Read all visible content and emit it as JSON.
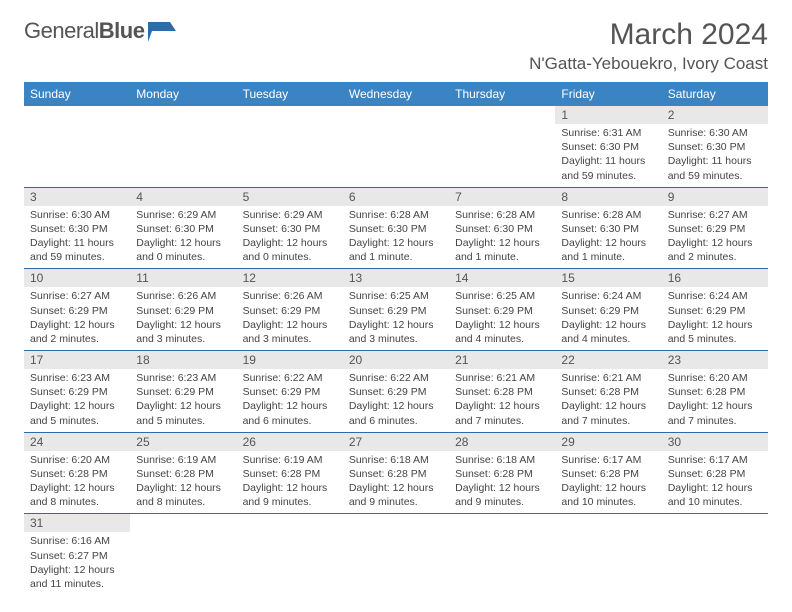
{
  "header": {
    "logo_general": "General",
    "logo_blue": "Blue",
    "title": "March 2024",
    "location": "N'Gatta-Yebouekro, Ivory Coast"
  },
  "colors": {
    "header_bg": "#3b84c4",
    "header_text": "#ffffff",
    "daynum_bg": "#e8e8e8",
    "row_border": "#2c6ca8",
    "logo_shape": "#2c6ca8",
    "text": "#444444"
  },
  "day_headers": [
    "Sunday",
    "Monday",
    "Tuesday",
    "Wednesday",
    "Thursday",
    "Friday",
    "Saturday"
  ],
  "weeks": [
    [
      null,
      null,
      null,
      null,
      null,
      {
        "n": "1",
        "sr": "Sunrise: 6:31 AM",
        "ss": "Sunset: 6:30 PM",
        "dl": "Daylight: 11 hours and 59 minutes."
      },
      {
        "n": "2",
        "sr": "Sunrise: 6:30 AM",
        "ss": "Sunset: 6:30 PM",
        "dl": "Daylight: 11 hours and 59 minutes."
      }
    ],
    [
      {
        "n": "3",
        "sr": "Sunrise: 6:30 AM",
        "ss": "Sunset: 6:30 PM",
        "dl": "Daylight: 11 hours and 59 minutes."
      },
      {
        "n": "4",
        "sr": "Sunrise: 6:29 AM",
        "ss": "Sunset: 6:30 PM",
        "dl": "Daylight: 12 hours and 0 minutes."
      },
      {
        "n": "5",
        "sr": "Sunrise: 6:29 AM",
        "ss": "Sunset: 6:30 PM",
        "dl": "Daylight: 12 hours and 0 minutes."
      },
      {
        "n": "6",
        "sr": "Sunrise: 6:28 AM",
        "ss": "Sunset: 6:30 PM",
        "dl": "Daylight: 12 hours and 1 minute."
      },
      {
        "n": "7",
        "sr": "Sunrise: 6:28 AM",
        "ss": "Sunset: 6:30 PM",
        "dl": "Daylight: 12 hours and 1 minute."
      },
      {
        "n": "8",
        "sr": "Sunrise: 6:28 AM",
        "ss": "Sunset: 6:30 PM",
        "dl": "Daylight: 12 hours and 1 minute."
      },
      {
        "n": "9",
        "sr": "Sunrise: 6:27 AM",
        "ss": "Sunset: 6:29 PM",
        "dl": "Daylight: 12 hours and 2 minutes."
      }
    ],
    [
      {
        "n": "10",
        "sr": "Sunrise: 6:27 AM",
        "ss": "Sunset: 6:29 PM",
        "dl": "Daylight: 12 hours and 2 minutes."
      },
      {
        "n": "11",
        "sr": "Sunrise: 6:26 AM",
        "ss": "Sunset: 6:29 PM",
        "dl": "Daylight: 12 hours and 3 minutes."
      },
      {
        "n": "12",
        "sr": "Sunrise: 6:26 AM",
        "ss": "Sunset: 6:29 PM",
        "dl": "Daylight: 12 hours and 3 minutes."
      },
      {
        "n": "13",
        "sr": "Sunrise: 6:25 AM",
        "ss": "Sunset: 6:29 PM",
        "dl": "Daylight: 12 hours and 3 minutes."
      },
      {
        "n": "14",
        "sr": "Sunrise: 6:25 AM",
        "ss": "Sunset: 6:29 PM",
        "dl": "Daylight: 12 hours and 4 minutes."
      },
      {
        "n": "15",
        "sr": "Sunrise: 6:24 AM",
        "ss": "Sunset: 6:29 PM",
        "dl": "Daylight: 12 hours and 4 minutes."
      },
      {
        "n": "16",
        "sr": "Sunrise: 6:24 AM",
        "ss": "Sunset: 6:29 PM",
        "dl": "Daylight: 12 hours and 5 minutes."
      }
    ],
    [
      {
        "n": "17",
        "sr": "Sunrise: 6:23 AM",
        "ss": "Sunset: 6:29 PM",
        "dl": "Daylight: 12 hours and 5 minutes."
      },
      {
        "n": "18",
        "sr": "Sunrise: 6:23 AM",
        "ss": "Sunset: 6:29 PM",
        "dl": "Daylight: 12 hours and 5 minutes."
      },
      {
        "n": "19",
        "sr": "Sunrise: 6:22 AM",
        "ss": "Sunset: 6:29 PM",
        "dl": "Daylight: 12 hours and 6 minutes."
      },
      {
        "n": "20",
        "sr": "Sunrise: 6:22 AM",
        "ss": "Sunset: 6:29 PM",
        "dl": "Daylight: 12 hours and 6 minutes."
      },
      {
        "n": "21",
        "sr": "Sunrise: 6:21 AM",
        "ss": "Sunset: 6:28 PM",
        "dl": "Daylight: 12 hours and 7 minutes."
      },
      {
        "n": "22",
        "sr": "Sunrise: 6:21 AM",
        "ss": "Sunset: 6:28 PM",
        "dl": "Daylight: 12 hours and 7 minutes."
      },
      {
        "n": "23",
        "sr": "Sunrise: 6:20 AM",
        "ss": "Sunset: 6:28 PM",
        "dl": "Daylight: 12 hours and 7 minutes."
      }
    ],
    [
      {
        "n": "24",
        "sr": "Sunrise: 6:20 AM",
        "ss": "Sunset: 6:28 PM",
        "dl": "Daylight: 12 hours and 8 minutes."
      },
      {
        "n": "25",
        "sr": "Sunrise: 6:19 AM",
        "ss": "Sunset: 6:28 PM",
        "dl": "Daylight: 12 hours and 8 minutes."
      },
      {
        "n": "26",
        "sr": "Sunrise: 6:19 AM",
        "ss": "Sunset: 6:28 PM",
        "dl": "Daylight: 12 hours and 9 minutes."
      },
      {
        "n": "27",
        "sr": "Sunrise: 6:18 AM",
        "ss": "Sunset: 6:28 PM",
        "dl": "Daylight: 12 hours and 9 minutes."
      },
      {
        "n": "28",
        "sr": "Sunrise: 6:18 AM",
        "ss": "Sunset: 6:28 PM",
        "dl": "Daylight: 12 hours and 9 minutes."
      },
      {
        "n": "29",
        "sr": "Sunrise: 6:17 AM",
        "ss": "Sunset: 6:28 PM",
        "dl": "Daylight: 12 hours and 10 minutes."
      },
      {
        "n": "30",
        "sr": "Sunrise: 6:17 AM",
        "ss": "Sunset: 6:28 PM",
        "dl": "Daylight: 12 hours and 10 minutes."
      }
    ],
    [
      {
        "n": "31",
        "sr": "Sunrise: 6:16 AM",
        "ss": "Sunset: 6:27 PM",
        "dl": "Daylight: 12 hours and 11 minutes."
      },
      null,
      null,
      null,
      null,
      null,
      null
    ]
  ]
}
